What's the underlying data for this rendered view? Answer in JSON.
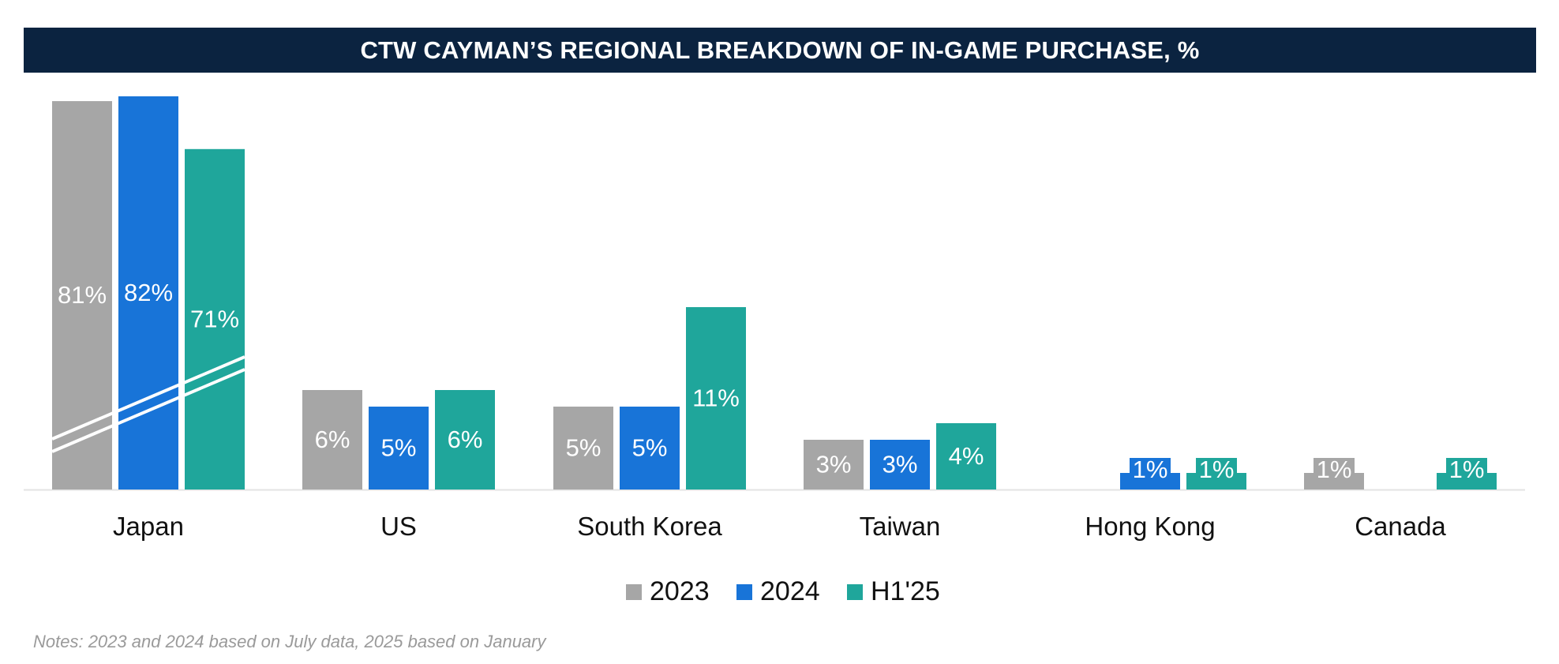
{
  "title": "CTW CAYMAN’S REGIONAL BREAKDOWN OF IN-GAME PURCHASE, %",
  "notes": "Notes: 2023 and 2024 based on July data, 2025 based on January",
  "colors": {
    "s2023": "#a6a6a6",
    "s2024": "#1874d8",
    "sH125": "#1fa69b",
    "title_bg": "#0b2340"
  },
  "chart_data": {
    "type": "bar",
    "categories": [
      "Japan",
      "US",
      "South Korea",
      "Taiwan",
      "Hong Kong",
      "Canada"
    ],
    "series": [
      {
        "name": "2023",
        "values": [
          81,
          6,
          5,
          3,
          null,
          1
        ],
        "labels": [
          "81%",
          "6%",
          "5%",
          "3%",
          "",
          "1%"
        ]
      },
      {
        "name": "2024",
        "values": [
          82,
          5,
          5,
          3,
          1,
          null
        ],
        "labels": [
          "82%",
          "5%",
          "5%",
          "3%",
          "1%",
          ""
        ]
      },
      {
        "name": "H1'25",
        "values": [
          71,
          6,
          11,
          4,
          1,
          1
        ],
        "labels": [
          "71%",
          "6%",
          "11%",
          "4%",
          "1%",
          "1%"
        ]
      }
    ],
    "axis_break": {
      "category": "Japan",
      "note": "y-axis broken for Japan bars"
    },
    "legend": "bottom-center",
    "grid": false
  }
}
